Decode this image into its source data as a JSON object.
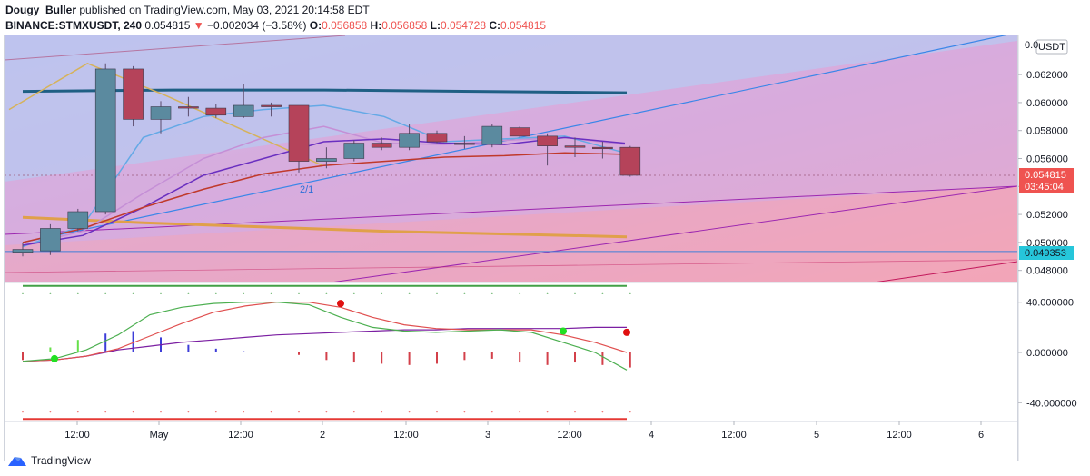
{
  "header": {
    "publisher": "Dougy_Buller",
    "published_text": "published on TradingView.com, May 03, 2021 20:14:58 EDT",
    "symbol": "BINANCE:STMXUSDT, 240",
    "last": "0.054815",
    "change_arrow": "▼",
    "change": "−0.002034 (−3.58%)",
    "o_label": "O:",
    "o": "0.056858",
    "h_label": "H:",
    "h": "0.056858",
    "l_label": "L:",
    "l": "0.054728",
    "c_label": "C:",
    "c": "0.054815"
  },
  "price_axis": {
    "currency": "USDT",
    "top_label": "0.0",
    "last_price": "0.054815",
    "countdown": "03:45:04",
    "support_price": "0.049353"
  },
  "footer": {
    "brand": "TradingView"
  },
  "annotation": "2/1",
  "colors": {
    "up": "#5b8a9f",
    "down": "#b5435a",
    "last_tag": "#ef5350",
    "support_tag": "#26c6da"
  },
  "chart_data": {
    "type": "candlestick",
    "title": "BINANCE:STMXUSDT, 240",
    "ylim": [
      0.0472,
      0.0648
    ],
    "yticks": [
      0.048,
      0.05,
      0.052,
      0.054,
      0.056,
      0.058,
      0.06,
      0.062
    ],
    "ytick_labels": [
      "0.048000",
      "0.050000",
      "0.052000",
      "0.054000",
      "0.056000",
      "0.058000",
      "0.060000",
      "0.062000"
    ],
    "x_tick_labels": [
      "12:00",
      "May",
      "12:00",
      "2",
      "12:00",
      "3",
      "12:00",
      "4",
      "12:00",
      "5",
      "12:00",
      "6"
    ],
    "candles": [
      {
        "o": 0.0493,
        "h": 0.05,
        "l": 0.049,
        "c": 0.0495
      },
      {
        "o": 0.0494,
        "h": 0.0513,
        "l": 0.0491,
        "c": 0.051
      },
      {
        "o": 0.051,
        "h": 0.0524,
        "l": 0.0508,
        "c": 0.0522
      },
      {
        "o": 0.0522,
        "h": 0.0628,
        "l": 0.052,
        "c": 0.0624
      },
      {
        "o": 0.0624,
        "h": 0.0626,
        "l": 0.0583,
        "c": 0.0588
      },
      {
        "o": 0.0588,
        "h": 0.0601,
        "l": 0.0578,
        "c": 0.0597
      },
      {
        "o": 0.0597,
        "h": 0.0604,
        "l": 0.059,
        "c": 0.0596
      },
      {
        "o": 0.0596,
        "h": 0.0599,
        "l": 0.0589,
        "c": 0.0591
      },
      {
        "o": 0.059,
        "h": 0.0613,
        "l": 0.0589,
        "c": 0.0598
      },
      {
        "o": 0.0598,
        "h": 0.06,
        "l": 0.059,
        "c": 0.0597
      },
      {
        "o": 0.0598,
        "h": 0.0598,
        "l": 0.055,
        "c": 0.0558
      },
      {
        "o": 0.0558,
        "h": 0.0568,
        "l": 0.0553,
        "c": 0.056
      },
      {
        "o": 0.056,
        "h": 0.0573,
        "l": 0.0558,
        "c": 0.0571
      },
      {
        "o": 0.0571,
        "h": 0.0575,
        "l": 0.0566,
        "c": 0.0568
      },
      {
        "o": 0.0568,
        "h": 0.0585,
        "l": 0.0566,
        "c": 0.0578
      },
      {
        "o": 0.0578,
        "h": 0.058,
        "l": 0.0571,
        "c": 0.0572
      },
      {
        "o": 0.0571,
        "h": 0.0576,
        "l": 0.0567,
        "c": 0.057
      },
      {
        "o": 0.057,
        "h": 0.0585,
        "l": 0.0568,
        "c": 0.0583
      },
      {
        "o": 0.0582,
        "h": 0.0583,
        "l": 0.0575,
        "c": 0.0576
      },
      {
        "o": 0.0576,
        "h": 0.0578,
        "l": 0.0555,
        "c": 0.0569
      },
      {
        "o": 0.0569,
        "h": 0.0575,
        "l": 0.0561,
        "c": 0.0568
      },
      {
        "o": 0.0568,
        "h": 0.0572,
        "l": 0.056,
        "c": 0.0567
      },
      {
        "o": 0.0568,
        "h": 0.0569,
        "l": 0.0547,
        "c": 0.0548
      }
    ],
    "lines": {
      "ma_dark_teal": [
        0.0608,
        0.0609,
        0.0609,
        0.0608,
        0.0607
      ],
      "ma_red": [
        0.05,
        0.051,
        0.0525,
        0.0538,
        0.0549,
        0.0555,
        0.0558,
        0.0561,
        0.0562,
        0.0564,
        0.0563
      ],
      "ma_purple": [
        0.0498,
        0.0505,
        0.0525,
        0.0548,
        0.056,
        0.0572,
        0.0574,
        0.0571,
        0.057,
        0.0575,
        0.0571
      ],
      "ma_lavender": [
        0.0498,
        0.0508,
        0.0535,
        0.056,
        0.0575,
        0.0583,
        0.0571,
        0.057,
        0.0573,
        0.0575,
        0.057
      ],
      "ma_light_blue": [
        0.0497,
        0.0512,
        0.0575,
        0.059,
        0.0595,
        0.0598,
        0.059,
        0.0572,
        0.0574,
        0.0576,
        0.0564
      ],
      "ma_orange": [
        0.0518,
        0.0514,
        0.0511,
        0.0508,
        0.0506,
        0.0504
      ],
      "trend_blue": [
        0.05,
        0.065
      ],
      "support": 0.049353
    },
    "oscillator": {
      "ylim": [
        -55,
        55
      ],
      "yticks": [
        40,
        0,
        -40
      ],
      "ytick_labels": [
        "40.000000",
        "0.000000",
        "-40.000000"
      ],
      "upper_band": 53,
      "lower_band": -53,
      "green": [
        -7,
        -5,
        2,
        14,
        30,
        36,
        39,
        40,
        40,
        38,
        28,
        20,
        17,
        16,
        17,
        18,
        16,
        8,
        0,
        -14
      ],
      "red": [
        -7,
        -6,
        -3,
        3,
        13,
        23,
        32,
        37,
        40,
        40,
        36,
        28,
        22,
        19,
        18,
        18,
        18,
        14,
        8,
        0
      ],
      "purple": [
        -7,
        -6,
        -3,
        2,
        5,
        8,
        10,
        12,
        14,
        15,
        16,
        17,
        18,
        18,
        19,
        19,
        19,
        19,
        20,
        20
      ],
      "cross_points": [
        {
          "i": 1,
          "v": -5,
          "color": "green"
        },
        {
          "i": 10,
          "v": 39,
          "color": "red"
        },
        {
          "i": 17,
          "v": 17,
          "color": "green"
        },
        {
          "i": 19,
          "v": 16,
          "color": "red"
        }
      ],
      "histogram": [
        -6,
        4,
        10,
        15,
        17,
        12,
        6,
        3,
        1,
        0,
        -2,
        -6,
        -8,
        -9,
        -10,
        -9,
        -6,
        -5,
        -8,
        -10,
        -8,
        -10,
        -12
      ]
    }
  }
}
